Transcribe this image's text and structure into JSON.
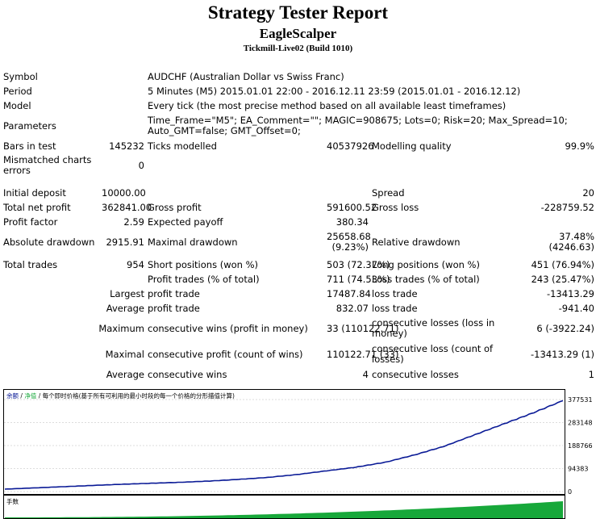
{
  "header": {
    "title": "Strategy Tester Report",
    "expert": "EagleScalper",
    "server": "Tickmill-Live02 (Build 1010)"
  },
  "info": {
    "symbol_label": "Symbol",
    "symbol": "AUDCHF (Australian Dollar vs Swiss Franc)",
    "period_label": "Period",
    "period": "5 Minutes (M5) 2015.01.01 22:00 - 2016.12.11 23:59 (2015.01.01 - 2016.12.12)",
    "model_label": "Model",
    "model": "Every tick (the most precise method based on all available least timeframes)",
    "parameters_label": "Parameters",
    "parameters_line1": "Time_Frame=\"M5\"; EA_Comment=\"\"; MAGIC=908675; Lots=0; Risk=20; Max_Spread=10;",
    "parameters_line2": "Auto_GMT=false; GMT_Offset=0;"
  },
  "stats": {
    "bars_label": "Bars in test",
    "bars": "145232",
    "ticks_label": "Ticks modelled",
    "ticks": "40537926",
    "quality_label": "Modelling quality",
    "quality": "99.9%",
    "mismatch_label": "Mismatched charts errors",
    "mismatch": "0",
    "deposit_label": "Initial deposit",
    "deposit": "10000.00",
    "spread_label": "Spread",
    "spread": "20",
    "net_label": "Total net profit",
    "net": "362841.00",
    "gross_profit_label": "Gross profit",
    "gross_profit": "591600.52",
    "gross_loss_label": "Gross loss",
    "gross_loss": "-228759.52",
    "pf_label": "Profit factor",
    "pf": "2.59",
    "payoff_label": "Expected payoff",
    "payoff": "380.34",
    "abs_dd_label": "Absolute drawdown",
    "abs_dd": "2915.91",
    "max_dd_label": "Maximal drawdown",
    "max_dd_1": "25658.68",
    "max_dd_2": "(9.23%)",
    "rel_dd_label": "Relative drawdown",
    "rel_dd_1": "37.48%",
    "rel_dd_2": "(4246.63)",
    "trades_label": "Total trades",
    "trades": "954",
    "short_label": "Short positions (won %)",
    "short": "503 (72.37%)",
    "long_label": "Long positions (won %)",
    "long": "451 (76.94%)",
    "profit_trades_label": "Profit trades (% of total)",
    "profit_trades": "711 (74.53%)",
    "loss_trades_label": "Loss trades (% of total)",
    "loss_trades": "243 (25.47%)",
    "largest_label": "Largest",
    "largest_profit_label": "profit trade",
    "largest_profit": "17487.84",
    "largest_loss_label": "loss trade",
    "largest_loss": "-13413.29",
    "average_label": "Average",
    "avg_profit_label": "profit trade",
    "avg_profit": "832.07",
    "avg_loss_label": "loss trade",
    "avg_loss": "-941.40",
    "maximum_label": "Maximum",
    "max_cw_label": "consecutive wins (profit in money)",
    "max_cw": "33 (110122.71)",
    "max_cl_label": "consecutive losses (loss in money)",
    "max_cl": "6 (-3922.24)",
    "maximal_label": "Maximal",
    "max_cp_label": "consecutive profit (count of wins)",
    "max_cp": "110122.71 (33)",
    "max_closs_label": "consecutive loss (count of losses)",
    "max_closs": "-13413.29 (1)",
    "avg2_label": "Average",
    "avg_cw_label": "consecutive wins",
    "avg_cw": "4",
    "avg_cl_label": "consecutive losses",
    "avg_cl": "1"
  },
  "chart_data": {
    "type": "line",
    "legend": "余额 / 净值 / 每个即时价格(基于所有可利用的最小时段的每一个价格的分形描值计算)",
    "legend_parts": [
      "余额",
      "净值",
      "每个即时价格(基于所有可利用的最小时段的每一个价格的分形描值计算)"
    ],
    "ylim": [
      0,
      377531
    ],
    "yticks": [
      0,
      94383,
      188766,
      283148,
      377531
    ],
    "ytick_labels": [
      "0",
      "94383",
      "188766",
      "283148",
      "377531"
    ],
    "volume_label": "手数",
    "series": [
      {
        "name": "余额",
        "color": "#0a1a96",
        "x": [
          0,
          50,
          100,
          150,
          200,
          250,
          300,
          350,
          400,
          450,
          500,
          550,
          600,
          650,
          700,
          750,
          800,
          850,
          900,
          954
        ],
        "values": [
          10000,
          15000,
          20000,
          25000,
          30000,
          34000,
          38000,
          43000,
          50000,
          58000,
          70000,
          85000,
          100000,
          120000,
          150000,
          185000,
          230000,
          275000,
          320000,
          372841
        ]
      }
    ],
    "colors": {
      "balance": "#0a1a96",
      "grid": "#bbbbbb",
      "volume": "#17a83a"
    }
  }
}
